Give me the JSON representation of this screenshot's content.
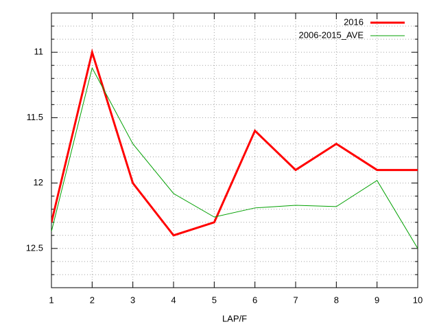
{
  "chart_data": {
    "type": "line",
    "x_label": "LAP/F",
    "x": [
      1,
      2,
      3,
      4,
      5,
      6,
      7,
      8,
      9,
      10
    ],
    "series": [
      {
        "name": "2016",
        "color": "#ff0000",
        "width": 3,
        "values": [
          12.3,
          11.0,
          12.0,
          12.4,
          12.3,
          11.6,
          11.9,
          11.7,
          11.9,
          11.9
        ]
      },
      {
        "name": "2006-2015_AVE",
        "color": "#00a000",
        "width": 1,
        "values": [
          12.37,
          11.12,
          11.7,
          12.08,
          12.26,
          12.19,
          12.17,
          12.18,
          11.98,
          12.5
        ]
      }
    ],
    "xlim": [
      1,
      10
    ],
    "xticks": [
      1,
      2,
      3,
      4,
      5,
      6,
      7,
      8,
      9,
      10
    ],
    "ylim": [
      12.8,
      10.7
    ],
    "yticks": [
      11,
      11.5,
      12,
      12.5
    ],
    "y_minor_ticks": [
      10.8,
      10.9,
      11.1,
      11.2,
      11.3,
      11.4,
      11.6,
      11.7,
      11.8,
      11.9,
      12.1,
      12.2,
      12.3,
      12.4,
      12.6,
      12.7
    ],
    "grid": true,
    "legend": "top-right"
  }
}
